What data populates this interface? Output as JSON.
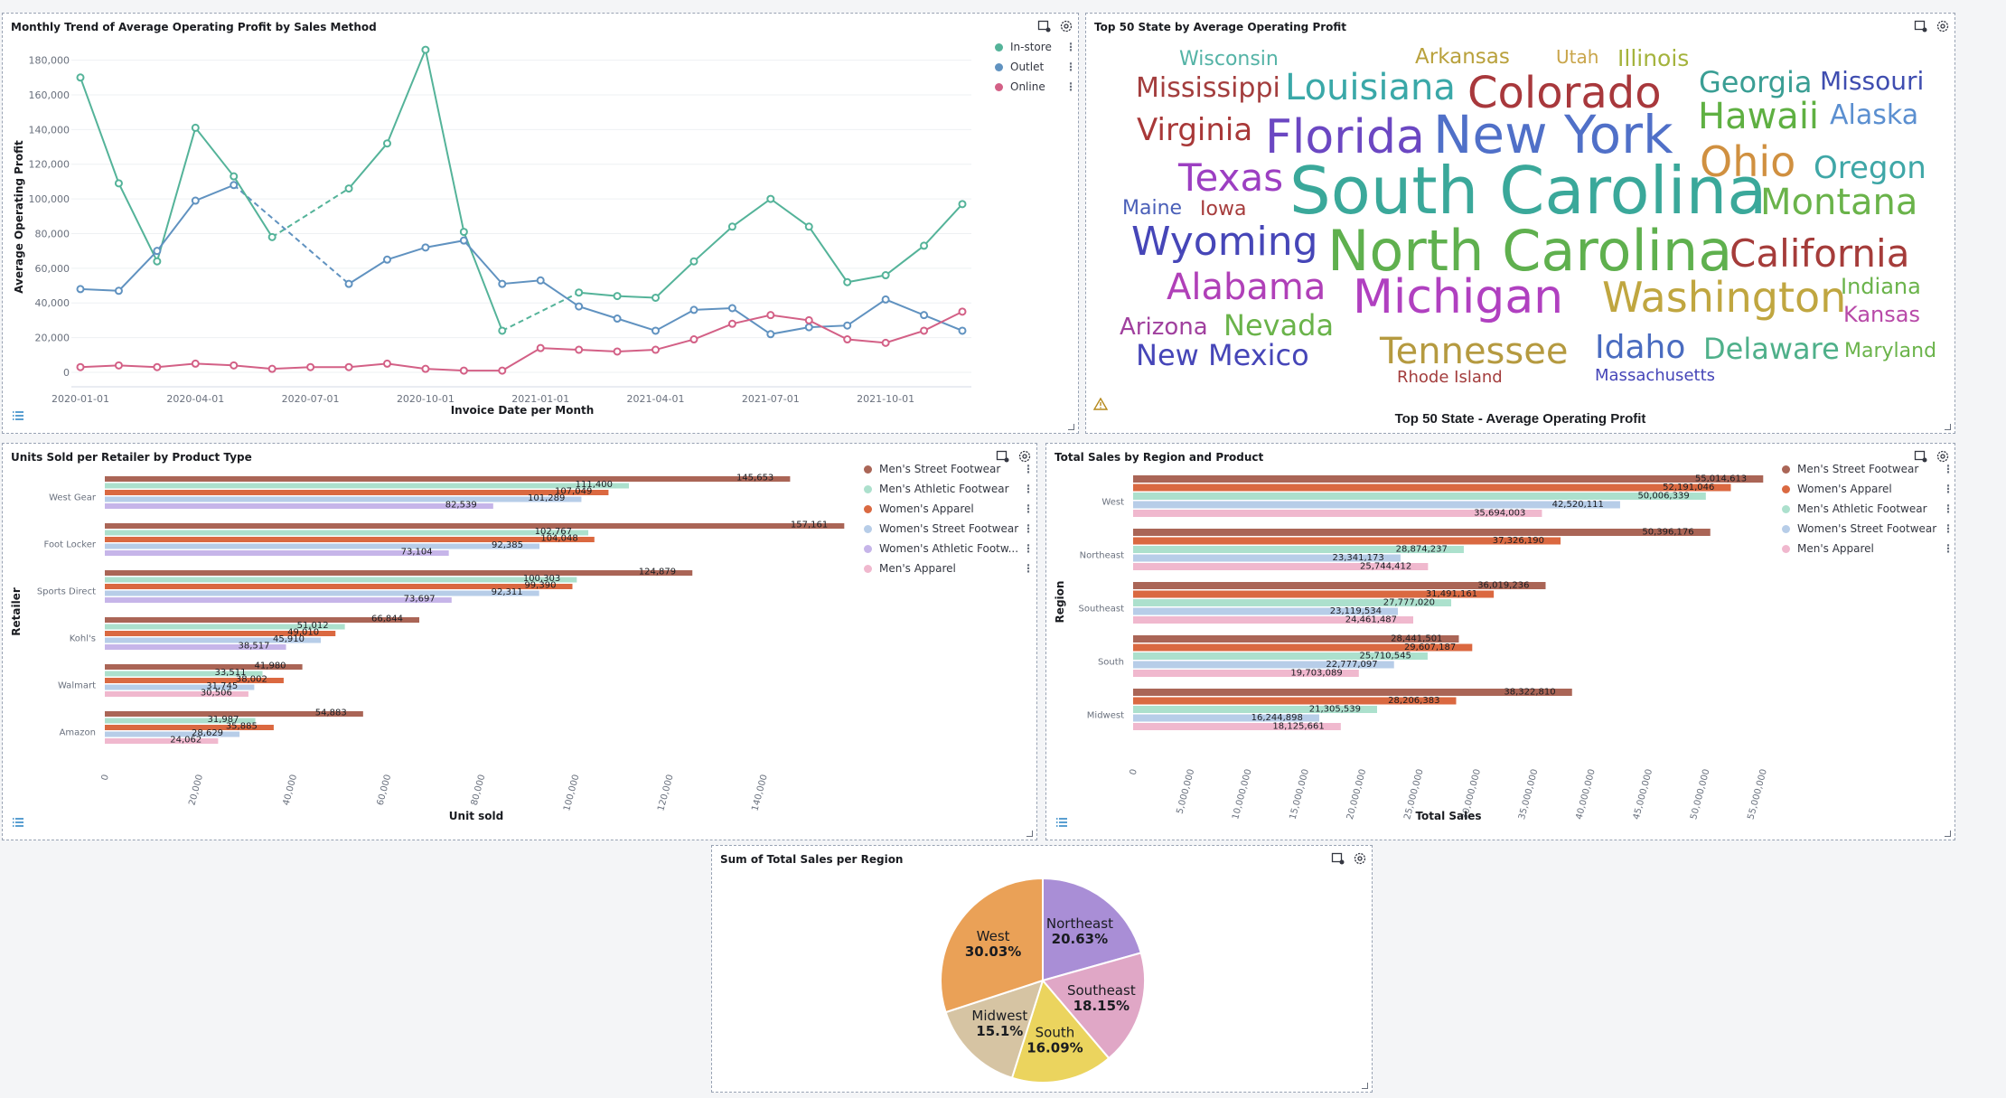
{
  "panels": {
    "trend": {
      "title": "Monthly Trend of Average Operating Profit by Sales Method",
      "chart_data": {
        "type": "line",
        "title": "Monthly Trend of Average Operating Profit by Sales Method",
        "xlabel": "Invoice Date per Month",
        "ylabel": "Average Operating Profit",
        "x": [
          "2020-01",
          "2020-02",
          "2020-03",
          "2020-04",
          "2020-05",
          "2020-06",
          "2020-07",
          "2020-08",
          "2020-09",
          "2020-10",
          "2020-11",
          "2020-12",
          "2021-01",
          "2021-02",
          "2021-03",
          "2021-04",
          "2021-05",
          "2021-06",
          "2021-07",
          "2021-08",
          "2021-09",
          "2021-10",
          "2021-11",
          "2021-12"
        ],
        "xticks": [
          "2020-01-01",
          "2020-04-01",
          "2020-07-01",
          "2020-10-01",
          "2021-01-01",
          "2021-04-01",
          "2021-07-01",
          "2021-10-01"
        ],
        "yticks": [
          "0",
          "20,000",
          "40,000",
          "60,000",
          "80,000",
          "100,000",
          "120,000",
          "140,000",
          "160,000",
          "180,000"
        ],
        "ylim": [
          0,
          185000
        ],
        "series": [
          {
            "name": "In-store",
            "color": "#54b399",
            "values": [
              170000,
              109000,
              64000,
              141000,
              113000,
              78000,
              null,
              106000,
              132000,
              186000,
              81000,
              24000,
              null,
              46000,
              44000,
              43000,
              64000,
              84000,
              100000,
              84000,
              52000,
              56000,
              73000,
              97000
            ]
          },
          {
            "name": "Outlet",
            "color": "#6092c0",
            "values": [
              48000,
              47000,
              70000,
              99000,
              108000,
              null,
              null,
              51000,
              65000,
              72000,
              76000,
              51000,
              53000,
              38000,
              31000,
              24000,
              36000,
              37000,
              22000,
              26000,
              27000,
              42000,
              33000,
              24000
            ]
          },
          {
            "name": "Online",
            "color": "#d36086",
            "values": [
              3000,
              4000,
              3000,
              5000,
              4000,
              2000,
              3000,
              3000,
              5000,
              2000,
              1000,
              1000,
              14000,
              13000,
              12000,
              13000,
              19000,
              28000,
              33000,
              30000,
              19000,
              17000,
              24000,
              35000
            ]
          }
        ],
        "gap_segments": [
          {
            "series": "In-store",
            "from": 5,
            "to": 7
          },
          {
            "series": "Outlet",
            "from": 4,
            "to": 7
          },
          {
            "series": "In-store",
            "from": 11,
            "to": 13
          }
        ]
      }
    },
    "wordcloud": {
      "title": "Top 50 State by Average Operating Profit",
      "footer": "Top 50 State - Average Operating Profit",
      "words": [
        {
          "text": "Wisconsin",
          "color": "#54b3a6"
        },
        {
          "text": "Arkansas",
          "color": "#b9a13c"
        },
        {
          "text": "Utah",
          "color": "#c9a54a"
        },
        {
          "text": "Illinois",
          "color": "#a4b33c"
        },
        {
          "text": "Mississippi",
          "color": "#a33d3d"
        },
        {
          "text": "Louisiana",
          "color": "#3aa8a8"
        },
        {
          "text": "Colorado",
          "color": "#a8383c"
        },
        {
          "text": "Georgia",
          "color": "#3a9e94"
        },
        {
          "text": "Missouri",
          "color": "#3f4db0"
        },
        {
          "text": "Virginia",
          "color": "#a83838"
        },
        {
          "text": "Florida",
          "color": "#6b47c2"
        },
        {
          "text": "New York",
          "color": "#5070c8"
        },
        {
          "text": "Hawaii",
          "color": "#5fb042"
        },
        {
          "text": "Alaska",
          "color": "#5b8fd0"
        },
        {
          "text": "Texas",
          "color": "#9c3fc2"
        },
        {
          "text": "Ohio",
          "color": "#d09040"
        },
        {
          "text": "Oregon",
          "color": "#3fa7a7"
        },
        {
          "text": "Maine",
          "color": "#4a5fb8"
        },
        {
          "text": "Iowa",
          "color": "#a63c3c"
        },
        {
          "text": "South Carolina",
          "color": "#3aa89a"
        },
        {
          "text": "Montana",
          "color": "#6ab34a"
        },
        {
          "text": "Wyoming",
          "color": "#4646b8"
        },
        {
          "text": "North Carolina",
          "color": "#5fb04e"
        },
        {
          "text": "California",
          "color": "#a53c3a"
        },
        {
          "text": "Alabama",
          "color": "#b040b8"
        },
        {
          "text": "Michigan",
          "color": "#b040c0"
        },
        {
          "text": "Washington",
          "color": "#c0a640"
        },
        {
          "text": "Indiana",
          "color": "#6ab34a"
        },
        {
          "text": "Kansas",
          "color": "#b84aa8"
        },
        {
          "text": "Arizona",
          "color": "#a0409e"
        },
        {
          "text": "Nevada",
          "color": "#6ab34a"
        },
        {
          "text": "New Mexico",
          "color": "#4646b8"
        },
        {
          "text": "Tennessee",
          "color": "#b59a40"
        },
        {
          "text": "Idaho",
          "color": "#4a6cc0"
        },
        {
          "text": "Delaware",
          "color": "#4fb08a"
        },
        {
          "text": "Maryland",
          "color": "#6ab34a"
        },
        {
          "text": "Rhode Island",
          "color": "#a33d3d"
        },
        {
          "text": "Massachusetts",
          "color": "#4646b8"
        }
      ]
    },
    "units": {
      "title": "Units Sold per Retailer by Product Type",
      "chart_data": {
        "type": "bar",
        "orientation": "horizontal",
        "xlabel": "Unit sold",
        "ylabel": "Retailer",
        "xticks": [
          "0",
          "20,000",
          "40,000",
          "60,000",
          "80,000",
          "100,000",
          "120,000",
          "140,000"
        ],
        "xlim": [
          0,
          160000
        ],
        "categories": [
          "West Gear",
          "Foot Locker",
          "Sports Direct",
          "Kohl's",
          "Walmart",
          "Amazon"
        ],
        "series": [
          {
            "name": "Men's Street Footwear",
            "color": "#aa6556",
            "values": [
              145653,
              157161,
              124879,
              66844,
              41980,
              54883
            ]
          },
          {
            "name": "Men's Athletic Footwear",
            "color": "#ace0cd",
            "values": [
              111400,
              102767,
              100303,
              51012,
              33511,
              31987
            ]
          },
          {
            "name": "Women's Apparel",
            "color": "#da6941",
            "values": [
              107049,
              104048,
              99390,
              49010,
              38002,
              35885
            ]
          },
          {
            "name": "Women's Street Footwear",
            "color": "#b7cde8",
            "values": [
              101289,
              92385,
              92311,
              45910,
              31745,
              28629
            ]
          },
          {
            "name": "Women's Athletic Footw...",
            "color": "#c6b5e9",
            "values": [
              82539,
              73104,
              73697,
              38517,
              null,
              null
            ]
          },
          {
            "name": "Men's Apparel",
            "color": "#f0b8ce",
            "values": [
              null,
              null,
              null,
              null,
              30506,
              24062
            ]
          }
        ],
        "labels": [
          [
            "145,653",
            "111,400",
            "107,049",
            "101,289",
            "82,539",
            ""
          ],
          [
            "157,161",
            "102,767",
            "104,048",
            "92,385",
            "73,104",
            ""
          ],
          [
            "124,879",
            "100,303",
            "99,390",
            "92,311",
            "73,697",
            ""
          ],
          [
            "66,844",
            "51,012",
            "49,010",
            "45,910",
            "38,517",
            ""
          ],
          [
            "41,980",
            "33,511",
            "38,002",
            "31,745",
            "",
            "30,506"
          ],
          [
            "54,883",
            "31,987",
            "35,885",
            "28,629",
            "",
            "24,062"
          ]
        ]
      }
    },
    "region": {
      "title": "Total Sales by Region and Product",
      "chart_data": {
        "type": "bar",
        "orientation": "horizontal",
        "xlabel": "Total Sales",
        "ylabel": "Region",
        "xticks": [
          "0",
          "5,000,000",
          "10,000,000",
          "15,000,000",
          "20,000,000",
          "25,000,000",
          "30,000,000",
          "35,000,000",
          "40,000,000",
          "45,000,000",
          "50,000,000",
          "55,000,000"
        ],
        "xlim": [
          0,
          55000000
        ],
        "categories": [
          "West",
          "Northeast",
          "Southeast",
          "South",
          "Midwest"
        ],
        "series": [
          {
            "name": "Men's Street Footwear",
            "color": "#aa6556",
            "values": [
              55014613,
              50396176,
              36019236,
              28441501,
              38322810
            ]
          },
          {
            "name": "Women's Apparel",
            "color": "#da6941",
            "values": [
              52191046,
              37326190,
              31491161,
              29607187,
              28206383
            ]
          },
          {
            "name": "Men's Athletic Footwear",
            "color": "#ace0cd",
            "values": [
              50006339,
              28874237,
              27777020,
              25710545,
              21305539
            ]
          },
          {
            "name": "Women's Street Footwear",
            "color": "#b7cde8",
            "values": [
              42520111,
              23341173,
              23119534,
              22777097,
              16244898
            ]
          },
          {
            "name": "Men's Apparel",
            "color": "#f0b8ce",
            "values": [
              35694003,
              25744412,
              24461487,
              19703089,
              18125661
            ]
          }
        ],
        "labels": [
          [
            "55,014,613",
            "52,191,046",
            "50,006,339",
            "42,520,111",
            "35,694,003"
          ],
          [
            "50,396,176",
            "37,326,190",
            "28,874,237",
            "23,341,173",
            "25,744,412"
          ],
          [
            "36,019,236",
            "31,491,161",
            "27,777,020",
            "23,119,534",
            "24,461,487"
          ],
          [
            "28,441,501",
            "29,607,187",
            "25,710,545",
            "22,777,097",
            "19,703,089"
          ],
          [
            "38,322,810",
            "28,206,383",
            "21,305,539",
            "16,244,898",
            "18,125,661"
          ]
        ]
      }
    },
    "pie": {
      "title": "Sum of Total Sales per Region",
      "chart_data": {
        "type": "pie",
        "slices": [
          {
            "label": "Northeast",
            "pct": "20.63%",
            "value": 20.63,
            "color": "#a98ed6"
          },
          {
            "label": "Southeast",
            "pct": "18.15%",
            "value": 18.15,
            "color": "#e0a7c6"
          },
          {
            "label": "South",
            "pct": "16.09%",
            "value": 16.09,
            "color": "#ebd45e"
          },
          {
            "label": "Midwest",
            "pct": "15.1%",
            "value": 15.1,
            "color": "#d6c4a3"
          },
          {
            "label": "West",
            "pct": "30.03%",
            "value": 30.03,
            "color": "#eaa157"
          }
        ]
      }
    }
  }
}
